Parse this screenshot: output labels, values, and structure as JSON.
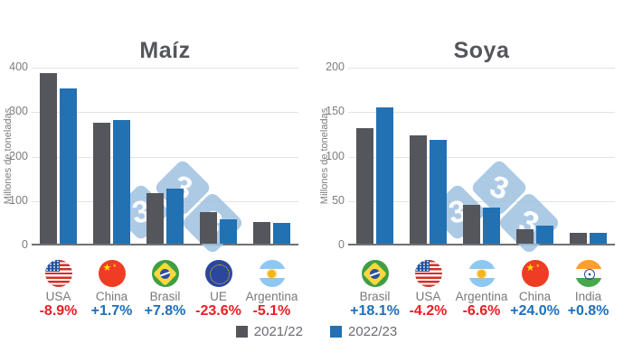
{
  "watermark": {
    "glyph": "3",
    "color": "#9fc1e0"
  },
  "colors": {
    "bar_2021": "#54565c",
    "bar_2022": "#2271b3",
    "positive_text": "#1f6fb8",
    "negative_text": "#ed1c24",
    "title_text": "#54565b",
    "axis_text": "#7b7d80",
    "gridline": "#e3e3e3"
  },
  "legend": {
    "items": [
      {
        "label": "2021/22",
        "color": "#54565c"
      },
      {
        "label": "2022/23",
        "color": "#2271b3"
      }
    ]
  },
  "chart_data": [
    {
      "type": "bar",
      "title": "Maíz",
      "ylabel": "Millones de toneladas",
      "ylim": [
        0,
        400
      ],
      "yticks": [
        400,
        300,
        200,
        100,
        0
      ],
      "grid": true,
      "legend_position": "bottom",
      "categories": [
        "USA",
        "China",
        "Brasil",
        "UE",
        "Argentina"
      ],
      "flags": [
        "usa",
        "china",
        "brasil",
        "ue",
        "argentina"
      ],
      "changes": [
        "-8.9%",
        "+1.7%",
        "+7.8%",
        "-23.6%",
        "-5.1%"
      ],
      "series": [
        {
          "name": "2021/22",
          "values": [
            383,
            272.6,
            114,
            70.5,
            49.5
          ]
        },
        {
          "name": "2022/23",
          "values": [
            349,
            277.2,
            123,
            53.9,
            47
          ]
        }
      ]
    },
    {
      "type": "bar",
      "title": "Soya",
      "ylabel": "Millones de toneladas",
      "ylim": [
        0,
        200
      ],
      "yticks": [
        200,
        150,
        100,
        50,
        0
      ],
      "grid": true,
      "legend_position": "bottom",
      "categories": [
        "Brasil",
        "USA",
        "Argentina",
        "China",
        "India"
      ],
      "flags": [
        "brasil",
        "usa",
        "argentina",
        "china",
        "india"
      ],
      "changes": [
        "+18.1%",
        "-4.2%",
        "-6.6%",
        "+24.0%",
        "+0.8%"
      ],
      "series": [
        {
          "name": "2021/22",
          "values": [
            129.5,
            122,
            44,
            16.4,
            11.9
          ]
        },
        {
          "name": "2022/23",
          "values": [
            153,
            116.9,
            41.1,
            20.3,
            12
          ]
        }
      ]
    }
  ]
}
